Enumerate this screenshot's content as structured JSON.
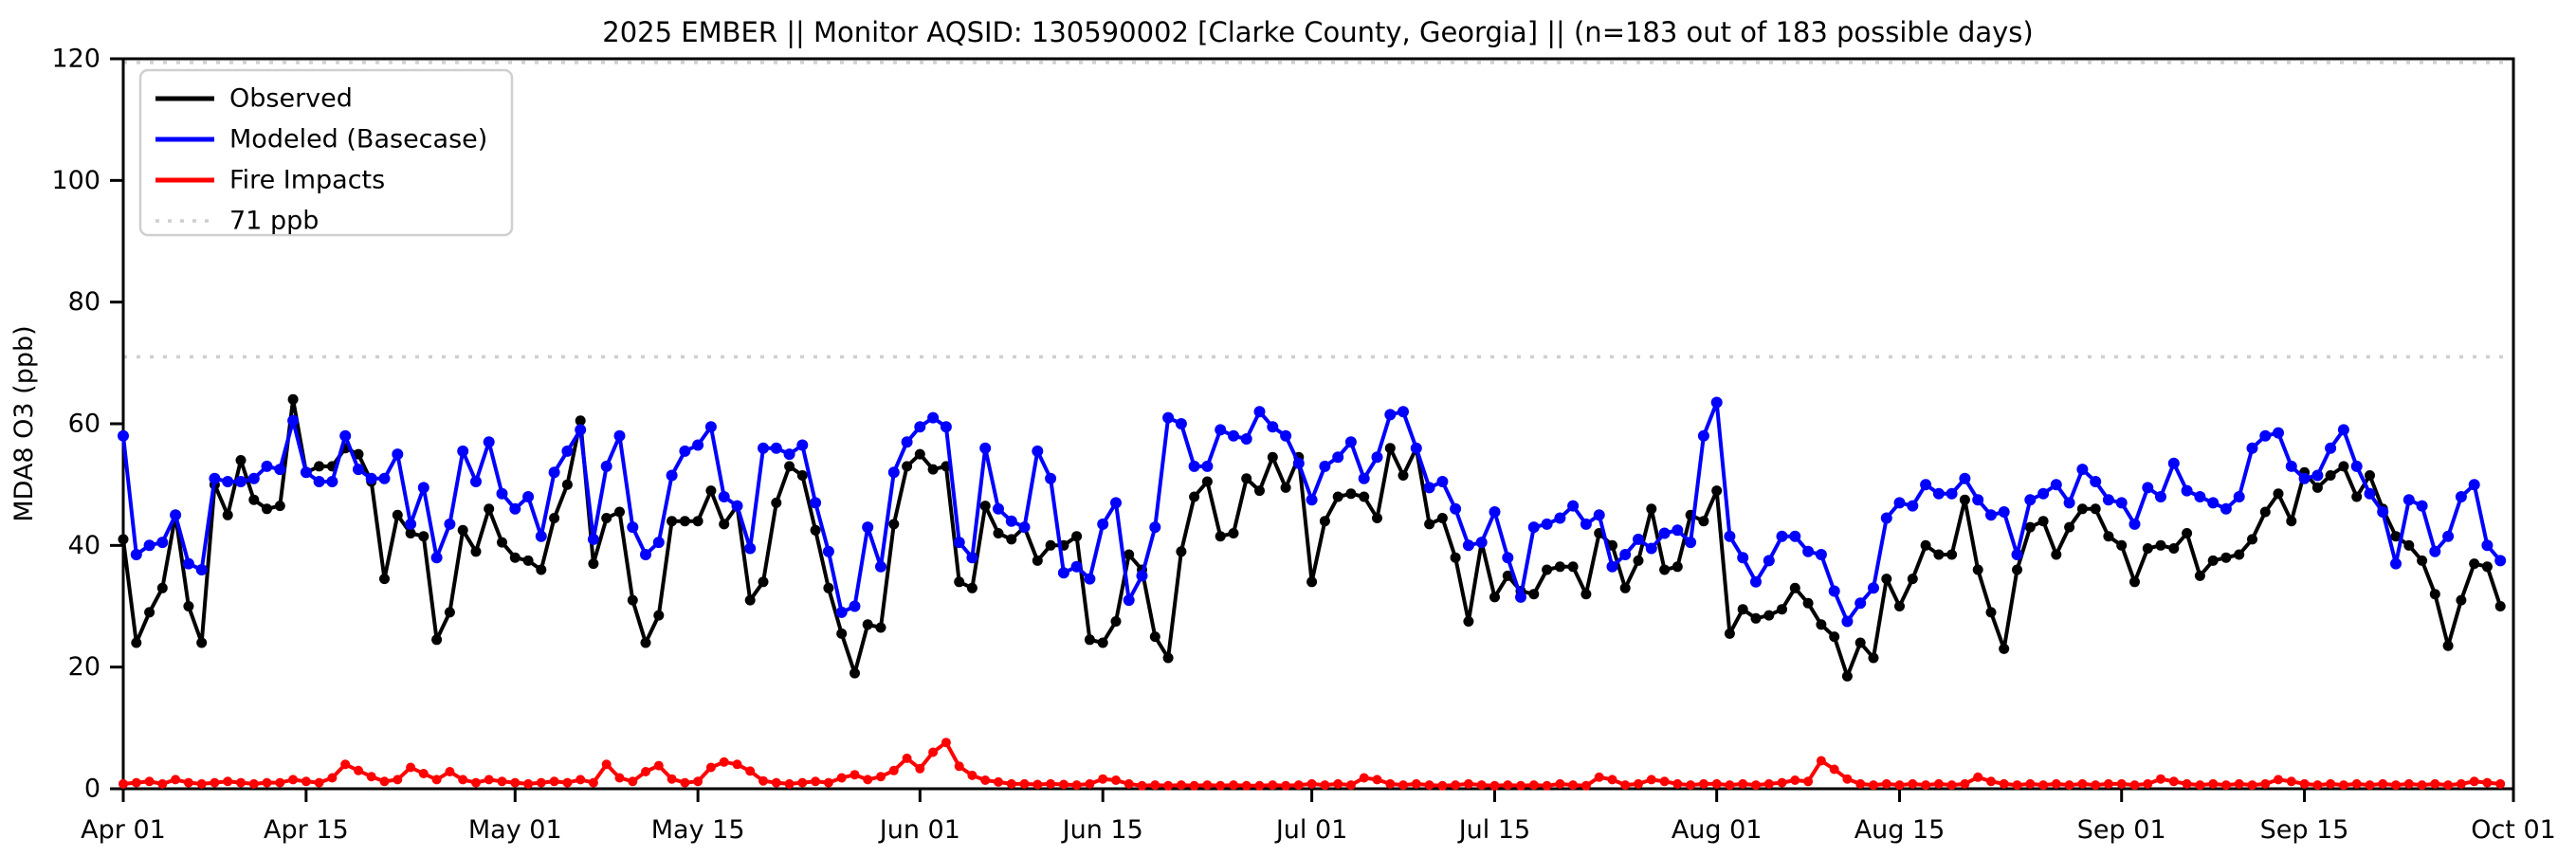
{
  "chart_data": {
    "type": "line",
    "title": "2025 EMBER || Monitor AQSID: 130590002 [Clarke County, Georgia] || (n=183 out of 183 possible days)",
    "ylabel": "MDA8 O3 (ppb)",
    "xlabel": "",
    "ylim": [
      0,
      120
    ],
    "yticks": [
      0,
      20,
      40,
      60,
      80,
      100,
      120
    ],
    "x_range_days": 183,
    "x_start_date": "Apr 01",
    "x_end_date": "Oct 01",
    "xticks": [
      {
        "label": "Apr 01",
        "day": 0
      },
      {
        "label": "Apr 15",
        "day": 14
      },
      {
        "label": "May 01",
        "day": 30
      },
      {
        "label": "May 15",
        "day": 44
      },
      {
        "label": "Jun 01",
        "day": 61
      },
      {
        "label": "Jun 15",
        "day": 75
      },
      {
        "label": "Jul 01",
        "day": 91
      },
      {
        "label": "Jul 15",
        "day": 105
      },
      {
        "label": "Aug 01",
        "day": 122
      },
      {
        "label": "Aug 15",
        "day": 136
      },
      {
        "label": "Sep 01",
        "day": 153
      },
      {
        "label": "Sep 15",
        "day": 167
      },
      {
        "label": "Oct 01",
        "day": 183
      }
    ],
    "grid": false,
    "frame": true,
    "threshold": {
      "label": "71 ppb",
      "value": 71,
      "color": "#cfcfcf",
      "style": "dotted"
    },
    "top_dotted_line": {
      "value": 119.4,
      "color": "#cfcfcf",
      "style": "dotted"
    },
    "legend": {
      "position": "upper-left",
      "entries": [
        {
          "label": "Observed",
          "color": "#000000",
          "style": "solid"
        },
        {
          "label": "Modeled (Basecase)",
          "color": "#0000ff",
          "style": "solid"
        },
        {
          "label": "Fire Impacts",
          "color": "#ff0000",
          "style": "solid"
        },
        {
          "label": "71 ppb",
          "color": "#cfcfcf",
          "style": "dotted"
        }
      ]
    },
    "series": [
      {
        "name": "Observed",
        "color": "#000000",
        "marker": "circle",
        "values": [
          41,
          24,
          29,
          33,
          45,
          30,
          24,
          50,
          45,
          54,
          47.5,
          46,
          46.5,
          64,
          52,
          53,
          53,
          56,
          55,
          50.5,
          34.5,
          45,
          42,
          41.5,
          24.5,
          29,
          42.5,
          39,
          46,
          40.5,
          38,
          37.5,
          36,
          44.5,
          50,
          60.5,
          37,
          44.5,
          45.5,
          31,
          24,
          28.5,
          44,
          44,
          44,
          49,
          43.5,
          46.5,
          31,
          34,
          47,
          53,
          51.5,
          42.5,
          33,
          25.5,
          19,
          27,
          26.5,
          43.5,
          53,
          55,
          52.5,
          53,
          34,
          33,
          46.5,
          42,
          41,
          43,
          37.5,
          40,
          40,
          41.5,
          24.5,
          24,
          27.5,
          38.5,
          36,
          25,
          21.5,
          39,
          48,
          50.5,
          41.5,
          42,
          51,
          49,
          54.5,
          49.5,
          54.5,
          34,
          44,
          48,
          48.5,
          48,
          44.5,
          56,
          51.5,
          56,
          43.5,
          44.5,
          38,
          27.5,
          40.5,
          31.5,
          35,
          32.5,
          32,
          36,
          36.5,
          36.5,
          32,
          42,
          40,
          33,
          37.5,
          46,
          36,
          36.5,
          45,
          44,
          49,
          25.5,
          29.5,
          28,
          28.5,
          29.5,
          33,
          30.5,
          27,
          25,
          18.5,
          24,
          21.5,
          34.5,
          30,
          34.5,
          40,
          38.5,
          38.5,
          47.5,
          36,
          29,
          23,
          36,
          43,
          44,
          38.5,
          43,
          46,
          46,
          41.5,
          40,
          34,
          39.5,
          40,
          39.5,
          42,
          35,
          37.5,
          38,
          38.5,
          41,
          45.5,
          48.5,
          44,
          52,
          49.5,
          51.5,
          53,
          48,
          51.5,
          46,
          41.5,
          40,
          37.5,
          32,
          23.5,
          31,
          37,
          36.5,
          30
        ]
      },
      {
        "name": "Modeled (Basecase)",
        "color": "#0000ff",
        "marker": "circle",
        "values": [
          58,
          38.5,
          40,
          40.5,
          45,
          37,
          36,
          51,
          50.5,
          50.5,
          51,
          53,
          52.5,
          60.5,
          52,
          50.5,
          50.5,
          58,
          52.5,
          51,
          51,
          55,
          43.5,
          49.5,
          38,
          43.5,
          55.5,
          50.5,
          57,
          48.5,
          46,
          48,
          41.5,
          52,
          55.5,
          59,
          41,
          53,
          58,
          43,
          38.5,
          40.5,
          51.5,
          55.5,
          56.5,
          59.5,
          48,
          46.5,
          39.5,
          56,
          56,
          55,
          56.5,
          47,
          39,
          29,
          30,
          43,
          36.5,
          52,
          57,
          59.5,
          61,
          59.5,
          40.5,
          38,
          56,
          46,
          44,
          43,
          55.5,
          51,
          35.5,
          36.5,
          34.5,
          43.5,
          47,
          31,
          35,
          43,
          61,
          60,
          53,
          53,
          59,
          58,
          57.5,
          62,
          59.5,
          58,
          53.5,
          47.5,
          53,
          54.5,
          57,
          51,
          54.5,
          61.5,
          62,
          56,
          49.5,
          50.5,
          46,
          40,
          40.5,
          45.5,
          38,
          31.5,
          43,
          43.5,
          44.5,
          46.5,
          43.5,
          45,
          36.5,
          38.5,
          41,
          39.5,
          42,
          42.5,
          40.5,
          58,
          63.5,
          41.5,
          38,
          34,
          37.5,
          41.5,
          41.5,
          39,
          38.5,
          32.5,
          27.5,
          30.5,
          33,
          44.5,
          47,
          46.5,
          50,
          48.5,
          48.5,
          51,
          47.5,
          45,
          45.5,
          38.5,
          47.5,
          48.5,
          50,
          47,
          52.5,
          50.5,
          47.5,
          47,
          43.5,
          49.5,
          48,
          53.5,
          49,
          48,
          47,
          46,
          48,
          56,
          58,
          58.5,
          53,
          51,
          51.5,
          56,
          59,
          53,
          48.5,
          45.5,
          37,
          47.5,
          46.5,
          39,
          41.5,
          48,
          50,
          40,
          37.5
        ]
      },
      {
        "name": "Fire Impacts",
        "color": "#ff0000",
        "marker": "circle",
        "values": [
          0.8,
          1,
          1.2,
          0.8,
          1.5,
          1,
          0.8,
          1,
          1.2,
          1,
          0.8,
          1,
          1,
          1.5,
          1.2,
          1,
          1.8,
          4,
          3,
          2,
          1.2,
          1.5,
          3.5,
          2.5,
          1.5,
          2.8,
          1.5,
          1,
          1.5,
          1.2,
          1,
          0.8,
          1,
          1.2,
          1,
          1.5,
          1,
          4,
          1.8,
          1.2,
          2.8,
          3.8,
          1.6,
          1,
          1.2,
          3.5,
          4.4,
          4,
          2.9,
          1.3,
          1,
          0.8,
          1,
          1.2,
          1,
          1.8,
          2.3,
          1.5,
          2,
          3,
          5,
          3.3,
          6,
          7.6,
          3.7,
          2.2,
          1.4,
          1.1,
          0.8,
          0.8,
          0.7,
          0.8,
          0.7,
          0.6,
          0.8,
          1.6,
          1.4,
          0.8,
          0.5,
          0.6,
          0.5,
          0.6,
          0.5,
          0.6,
          0.5,
          0.6,
          0.5,
          0.5,
          0.6,
          0.5,
          0.6,
          0.8,
          0.6,
          0.8,
          0.6,
          1.8,
          1.5,
          0.8,
          0.6,
          0.8,
          0.6,
          0.5,
          0.6,
          0.8,
          0.6,
          0.5,
          0.6,
          0.5,
          0.6,
          0.5,
          0.8,
          0.6,
          0.5,
          1.9,
          1.5,
          0.6,
          0.8,
          1.5,
          1.2,
          0.8,
          0.6,
          0.8,
          0.8,
          0.6,
          0.8,
          0.6,
          0.8,
          1,
          1.4,
          1.2,
          4.6,
          3.2,
          1.6,
          0.8,
          0.6,
          0.8,
          0.6,
          0.8,
          0.6,
          0.8,
          0.6,
          0.8,
          1.9,
          1.2,
          0.8,
          0.6,
          0.8,
          0.6,
          0.8,
          0.6,
          0.8,
          0.6,
          0.8,
          0.8,
          0.6,
          0.8,
          1.6,
          1.2,
          0.8,
          0.6,
          0.8,
          0.6,
          0.8,
          0.6,
          0.8,
          1.5,
          1.2,
          0.8,
          0.6,
          0.8,
          0.6,
          0.8,
          0.6,
          0.8,
          0.6,
          0.8,
          0.6,
          0.8,
          0.6,
          0.8,
          1.2,
          1,
          0.8
        ]
      }
    ]
  }
}
